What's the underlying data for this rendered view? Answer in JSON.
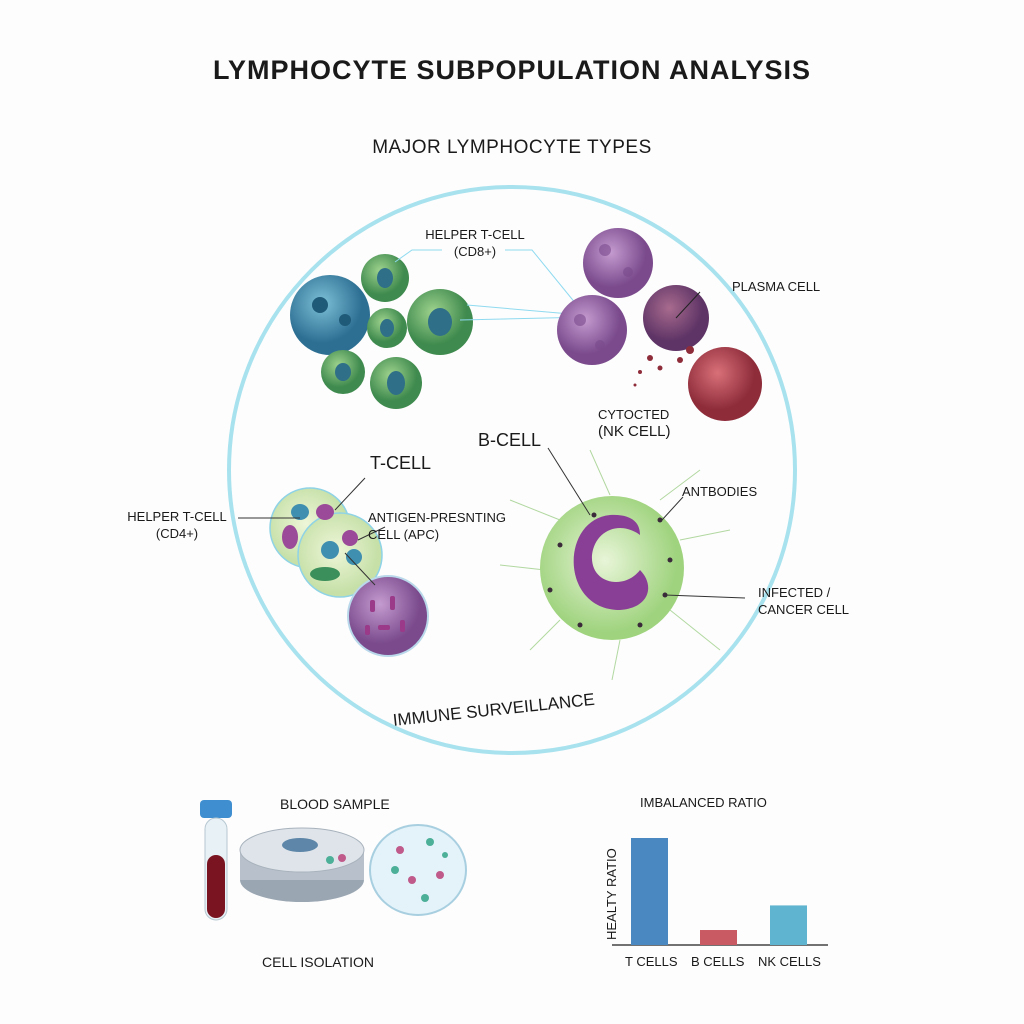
{
  "title": "LYMPHOCYTE SUBPOPULATION ANALYSIS",
  "subtitle": "MAJOR LYMPHOCYTE TYPES",
  "circle_caption": "IMMUNE SURVEILLANCE",
  "labels": {
    "helper_cd8_line1": "HELPER T-CELL",
    "helper_cd8_line2": "(CD8+)",
    "plasma_cell": "PLASMA CELL",
    "cytocted_line1": "CYTOCTED",
    "cytocted_line2": "(NK CELL)",
    "b_cell": "B-CELL",
    "t_cell": "T-CELL",
    "helper_cd4_line1": "HELPER T-CELL",
    "helper_cd4_line2": "(CD4+)",
    "apc_line1": "ANTIGEN-PRESNTING",
    "apc_line2": "CELL (APC)",
    "antibodies": "ANTBODIES",
    "infected_line1": "INFECTED /",
    "infected_line2": "CANCER CELL"
  },
  "workflow": {
    "blood_sample": "BLOOD SAMPLE",
    "cell_isolation": "CELL ISOLATION"
  },
  "colors": {
    "circle": "#a8e2ee",
    "green_cell": "#5fa866",
    "blue_cell": "#3f8fb0",
    "purple_cell": "#9a6aa8",
    "red_cell": "#b84a55",
    "b_cell_body": "#c9e8b0"
  },
  "chart_data": {
    "type": "bar",
    "title": "IMBALANCED RATIO",
    "ylabel": "HEALTY RATIO",
    "xlabel": "",
    "categories": [
      "T CELLS",
      "B CELLS",
      "NK CELLS"
    ],
    "values": [
      100,
      14,
      37
    ],
    "colors": [
      "#4a88c2",
      "#c95a64",
      "#5fb5cf"
    ],
    "grid": false
  }
}
